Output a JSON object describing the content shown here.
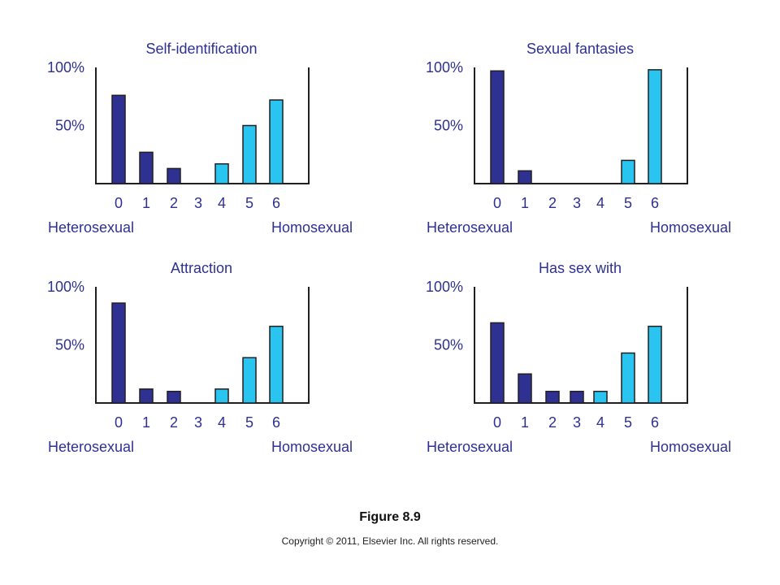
{
  "figure": {
    "caption": "Figure 8.9",
    "copyright": "Copyright © 2011, Elsevier Inc. All rights reserved."
  },
  "colors": {
    "dark_bar": "#2e3192",
    "light_bar": "#29c4ef",
    "title": "#2e3192",
    "axis": "#231f20"
  },
  "chart_data": [
    {
      "type": "bar",
      "title": "Self-identification",
      "categories": [
        "0",
        "1",
        "2",
        "3",
        "4",
        "5",
        "6"
      ],
      "values": [
        76,
        27,
        13,
        0,
        17,
        50,
        72
      ],
      "ylim": [
        0,
        100
      ],
      "yticks": [
        "100%",
        "50%"
      ],
      "xlabel_left": "Heterosexual",
      "xlabel_right": "Homosexual"
    },
    {
      "type": "bar",
      "title": "Sexual fantasies",
      "categories": [
        "0",
        "1",
        "2",
        "3",
        "4",
        "5",
        "6"
      ],
      "values": [
        97,
        11,
        0,
        0,
        0,
        20,
        98
      ],
      "ylim": [
        0,
        100
      ],
      "yticks": [
        "100%",
        "50%"
      ],
      "xlabel_left": "Heterosexual",
      "xlabel_right": "Homosexual"
    },
    {
      "type": "bar",
      "title": "Attraction",
      "categories": [
        "0",
        "1",
        "2",
        "3",
        "4",
        "5",
        "6"
      ],
      "values": [
        86,
        12,
        10,
        0,
        12,
        39,
        66
      ],
      "ylim": [
        0,
        100
      ],
      "yticks": [
        "100%",
        "50%"
      ],
      "xlabel_left": "Heterosexual",
      "xlabel_right": "Homosexual"
    },
    {
      "type": "bar",
      "title": "Has sex with",
      "categories": [
        "0",
        "1",
        "2",
        "3",
        "4",
        "5",
        "6"
      ],
      "values": [
        69,
        25,
        10,
        10,
        10,
        43,
        66
      ],
      "ylim": [
        0,
        100
      ],
      "yticks": [
        "100%",
        "50%"
      ],
      "xlabel_left": "Heterosexual",
      "xlabel_right": "Homosexual"
    }
  ]
}
